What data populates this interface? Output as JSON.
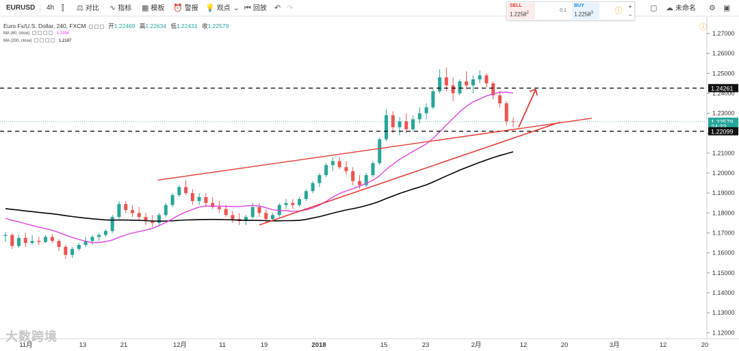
{
  "toolbar": {
    "symbol": "EURUSD",
    "interval": "4h",
    "compare_label": "对比",
    "indicators_label": "指标",
    "templates_label": "模板",
    "alert_label": "警报",
    "ideas_label": "观点",
    "replay_label": "回放",
    "layout_name": "未命名"
  },
  "trade": {
    "sell_label": "SELL",
    "sell_price": "1.2258",
    "sell_sup": "2",
    "spread": "0.1",
    "buy_label": "BUY",
    "buy_price": "1.2258",
    "buy_sup": "3",
    "plus": "+",
    "minus": "−"
  },
  "legend": {
    "title": "Euro Fx/U.S. Dollar, 240, FXCM",
    "open_label": "开",
    "open": "1.22469",
    "high_label": "高",
    "high": "1.22634",
    "low_label": "低",
    "low": "1.22431",
    "close_label": "收",
    "close": "1.22579",
    "ma60_label": "MA (60, close)",
    "ma60_value": "1.2396",
    "ma200_label": "MA (200, close)",
    "ma200_value": "1.2187"
  },
  "colors": {
    "up": "#26a69a",
    "down": "#ef5350",
    "ma60": "#e040e0",
    "ma200": "#000000",
    "trend": "#e53935",
    "price_line": "#26a69a"
  },
  "watermark": "大数跨境",
  "chart_data": {
    "type": "candlestick",
    "symbol": "EURUSD",
    "interval": "240",
    "ylim": [
      1.117,
      1.2765
    ],
    "y_ticks": [
      "1.27000",
      "1.26000",
      "1.25000",
      "1.24000",
      "1.23000",
      "1.22000",
      "1.21000",
      "1.20000",
      "1.19000",
      "1.18000",
      "1.17000",
      "1.16000",
      "1.15000",
      "1.14000",
      "1.13000",
      "1.12000"
    ],
    "x_labels": [
      "11月",
      "13",
      "21",
      "12月",
      "11",
      "19",
      "2018",
      "15",
      "23",
      "2月",
      "12",
      "20",
      "3月",
      "12",
      "20"
    ],
    "ohlc_approx": [
      [
        1.1685,
        1.1705,
        1.1655,
        1.169
      ],
      [
        1.169,
        1.17,
        1.162,
        1.1635
      ],
      [
        1.1635,
        1.169,
        1.1625,
        1.1675
      ],
      [
        1.1675,
        1.17,
        1.163,
        1.165
      ],
      [
        1.165,
        1.169,
        1.164,
        1.166
      ],
      [
        1.166,
        1.168,
        1.164,
        1.1655
      ],
      [
        1.1655,
        1.169,
        1.165,
        1.168
      ],
      [
        1.168,
        1.1695,
        1.165,
        1.166
      ],
      [
        1.166,
        1.167,
        1.161,
        1.163
      ],
      [
        1.163,
        1.164,
        1.157,
        1.159
      ],
      [
        1.159,
        1.163,
        1.1575,
        1.162
      ],
      [
        1.162,
        1.165,
        1.161,
        1.164
      ],
      [
        1.164,
        1.168,
        1.163,
        1.166
      ],
      [
        1.166,
        1.169,
        1.164,
        1.168
      ],
      [
        1.168,
        1.17,
        1.166,
        1.169
      ],
      [
        1.169,
        1.172,
        1.168,
        1.171
      ],
      [
        1.171,
        1.179,
        1.17,
        1.178
      ],
      [
        1.178,
        1.186,
        1.177,
        1.1845
      ],
      [
        1.1845,
        1.186,
        1.18,
        1.1815
      ],
      [
        1.1815,
        1.184,
        1.178,
        1.18
      ],
      [
        1.18,
        1.183,
        1.176,
        1.178
      ],
      [
        1.178,
        1.18,
        1.174,
        1.176
      ],
      [
        1.176,
        1.179,
        1.173,
        1.175
      ],
      [
        1.175,
        1.18,
        1.174,
        1.179
      ],
      [
        1.179,
        1.185,
        1.178,
        1.184
      ],
      [
        1.184,
        1.19,
        1.183,
        1.189
      ],
      [
        1.189,
        1.194,
        1.188,
        1.193
      ],
      [
        1.193,
        1.1965,
        1.189,
        1.19
      ],
      [
        1.19,
        1.192,
        1.184,
        1.186
      ],
      [
        1.186,
        1.19,
        1.184,
        1.188
      ],
      [
        1.188,
        1.19,
        1.183,
        1.185
      ],
      [
        1.185,
        1.188,
        1.182,
        1.183
      ],
      [
        1.183,
        1.186,
        1.18,
        1.182
      ],
      [
        1.182,
        1.184,
        1.178,
        1.179
      ],
      [
        1.179,
        1.181,
        1.175,
        1.177
      ],
      [
        1.177,
        1.18,
        1.174,
        1.176
      ],
      [
        1.176,
        1.179,
        1.174,
        1.178
      ],
      [
        1.178,
        1.185,
        1.177,
        1.183
      ],
      [
        1.183,
        1.185,
        1.178,
        1.18
      ],
      [
        1.18,
        1.182,
        1.175,
        1.177
      ],
      [
        1.177,
        1.18,
        1.176,
        1.179
      ],
      [
        1.179,
        1.185,
        1.178,
        1.184
      ],
      [
        1.184,
        1.187,
        1.182,
        1.185
      ],
      [
        1.185,
        1.187,
        1.182,
        1.184
      ],
      [
        1.184,
        1.188,
        1.183,
        1.187
      ],
      [
        1.187,
        1.192,
        1.186,
        1.191
      ],
      [
        1.191,
        1.196,
        1.19,
        1.195
      ],
      [
        1.195,
        1.2,
        1.193,
        1.199
      ],
      [
        1.199,
        1.205,
        1.198,
        1.204
      ],
      [
        1.204,
        1.208,
        1.201,
        1.206
      ],
      [
        1.206,
        1.208,
        1.202,
        1.203
      ],
      [
        1.203,
        1.206,
        1.199,
        1.201
      ],
      [
        1.201,
        1.203,
        1.194,
        1.196
      ],
      [
        1.196,
        1.199,
        1.192,
        1.194
      ],
      [
        1.194,
        1.2,
        1.193,
        1.199
      ],
      [
        1.199,
        1.206,
        1.198,
        1.205
      ],
      [
        1.205,
        1.218,
        1.204,
        1.217
      ],
      [
        1.217,
        1.232,
        1.216,
        1.229
      ],
      [
        1.229,
        1.231,
        1.22,
        1.223
      ],
      [
        1.223,
        1.228,
        1.219,
        1.226
      ],
      [
        1.226,
        1.23,
        1.22,
        1.222
      ],
      [
        1.222,
        1.229,
        1.221,
        1.227
      ],
      [
        1.227,
        1.233,
        1.225,
        1.23
      ],
      [
        1.23,
        1.235,
        1.227,
        1.233
      ],
      [
        1.233,
        1.242,
        1.232,
        1.241
      ],
      [
        1.241,
        1.252,
        1.24,
        1.248
      ],
      [
        1.248,
        1.253,
        1.241,
        1.244
      ],
      [
        1.244,
        1.248,
        1.236,
        1.24
      ],
      [
        1.24,
        1.247,
        1.239,
        1.246
      ],
      [
        1.246,
        1.251,
        1.242,
        1.244
      ],
      [
        1.244,
        1.249,
        1.24,
        1.247
      ],
      [
        1.247,
        1.2515,
        1.245,
        1.249
      ],
      [
        1.249,
        1.25,
        1.243,
        1.245
      ],
      [
        1.245,
        1.246,
        1.237,
        1.239
      ],
      [
        1.239,
        1.241,
        1.233,
        1.235
      ],
      [
        1.235,
        1.236,
        1.224,
        1.226
      ],
      [
        1.226,
        1.228,
        1.223,
        1.2258
      ]
    ],
    "series": [
      {
        "name": "MA (60, close)",
        "last": 1.2396
      },
      {
        "name": "MA (200, close)",
        "last": 1.2187
      }
    ],
    "horizontal_lines": [
      1.24261,
      1.22099
    ],
    "trendlines": [
      {
        "from": [
          "2017-11-27",
          1.1965
        ],
        "to": [
          "2018-02-27",
          1.2275
        ]
      },
      {
        "from": [
          "2017-12-19",
          1.174
        ],
        "to": [
          "2018-02-16",
          1.2255
        ]
      }
    ],
    "arrow": {
      "from": [
        "2018-02-09",
        1.223
      ],
      "to": [
        "2018-02-12",
        1.242
      ]
    },
    "price_labels": [
      "1.24261",
      "1.22579",
      "24:33",
      "1.22099"
    ],
    "grid": false
  }
}
